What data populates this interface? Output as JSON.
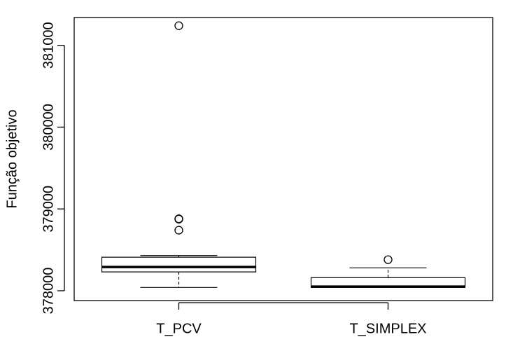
{
  "chart_data": {
    "type": "box",
    "title": "",
    "xlabel": "",
    "ylabel": "Função objetivo",
    "ylim": [
      377880,
      381340
    ],
    "yticks": [
      378000,
      379000,
      380000,
      381000
    ],
    "ytick_labels": [
      "378000",
      "379000",
      "380000",
      "381000"
    ],
    "categories": [
      "T_PCV",
      "T_SIMPLEX"
    ],
    "boxes": [
      {
        "category": "T_PCV",
        "whisker_low": 378040,
        "q1": 378230,
        "median": 378290,
        "q3": 378410,
        "whisker_high": 378430,
        "outliers": [
          381240,
          378880,
          378875,
          378740
        ]
      },
      {
        "category": "T_SIMPLEX",
        "whisker_low": 378040,
        "q1": 378040,
        "median": 378050,
        "q3": 378160,
        "whisker_high": 378280,
        "outliers": [
          378380
        ]
      }
    ],
    "grid": false,
    "legend": "none"
  }
}
